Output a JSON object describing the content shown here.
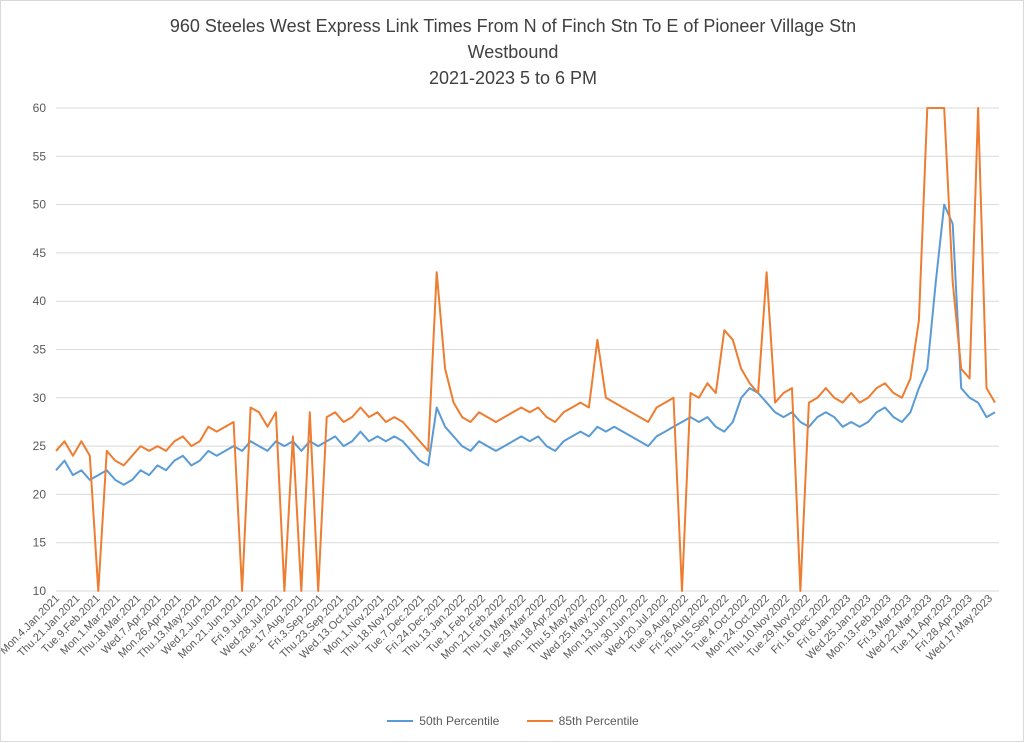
{
  "chart_data": {
    "type": "line",
    "title": "960 Steeles West Express Link Times From N of Finch Stn To E of Pioneer Village Stn",
    "subtitle": "Westbound",
    "subtitle2": "2021-2023 5 to 6 PM",
    "xlabel": "",
    "ylabel": "",
    "ylim": [
      10,
      60
    ],
    "yticks": [
      10,
      15,
      20,
      25,
      30,
      35,
      40,
      45,
      50,
      55,
      60
    ],
    "grid": true,
    "legend_position": "bottom",
    "x_tick_labels": [
      "Mon.4.Jan.2021",
      "Thu.21.Jan.2021",
      "Tue.9.Feb.2021",
      "Mon.1.Mar.2021",
      "Thu.18.Mar.2021",
      "Wed.7.Apr.2021",
      "Mon.26.Apr.2021",
      "Thu.13.May.2021",
      "Wed.2.Jun.2021",
      "Mon.21.Jun.2021",
      "Fri.9.Jul.2021",
      "Wed.28.Jul.2021",
      "Tue.17.Aug.2021",
      "Fri.3.Sep.2021",
      "Thu.23.Sep.2021",
      "Wed.13.Oct.2021",
      "Mon.1.Nov.2021",
      "Thu.18.Nov.2021",
      "Tue.7.Dec.2021",
      "Fri.24.Dec.2021",
      "Thu.13.Jan.2022",
      "Tue.1.Feb.2022",
      "Mon.21.Feb.2022",
      "Thu.10.Mar.2022",
      "Tue.29.Mar.2022",
      "Mon.18.Apr.2022",
      "Thu.5.May.2022",
      "Wed.25.May.2022",
      "Mon.13.Jun.2022",
      "Thu.30.Jun.2022",
      "Wed.20.Jul.2022",
      "Tue.9.Aug.2022",
      "Fri.26.Aug.2022",
      "Thu.15.Sep.2022",
      "Tue.4.Oct.2022",
      "Mon.24.Oct.2022",
      "Thu.10.Nov.2022",
      "Tue.29.Nov.2022",
      "Fri.16.Dec.2022",
      "Fri.6.Jan.2023",
      "Wed.25.Jan.2023",
      "Mon.13.Feb.2023",
      "Fri.3.Mar.2023",
      "Wed.22.Mar.2023",
      "Tue.11.Apr.2023",
      "Fri.28.Apr.2023",
      "Wed.17.May.2023"
    ],
    "series": [
      {
        "name": "50th Percentile",
        "color": "#5b9bd5",
        "values": [
          22.5,
          23.5,
          22.0,
          22.5,
          21.5,
          22.0,
          22.5,
          21.5,
          21.0,
          21.5,
          22.5,
          22.0,
          23.0,
          22.5,
          23.5,
          24.0,
          23.0,
          23.5,
          24.5,
          24.0,
          24.5,
          25.0,
          24.5,
          25.5,
          25.0,
          24.5,
          25.5,
          25.0,
          25.5,
          24.5,
          25.5,
          25.0,
          25.5,
          26.0,
          25.0,
          25.5,
          26.5,
          25.5,
          26.0,
          25.5,
          26.0,
          25.5,
          24.5,
          23.5,
          23.0,
          29.0,
          27.0,
          26.0,
          25.0,
          24.5,
          25.5,
          25.0,
          24.5,
          25.0,
          25.5,
          26.0,
          25.5,
          26.0,
          25.0,
          24.5,
          25.5,
          26.0,
          26.5,
          26.0,
          27.0,
          26.5,
          27.0,
          26.5,
          26.0,
          25.5,
          25.0,
          26.0,
          26.5,
          27.0,
          27.5,
          28.0,
          27.5,
          28.0,
          27.0,
          26.5,
          27.5,
          30.0,
          31.0,
          30.5,
          29.5,
          28.5,
          28.0,
          28.5,
          27.5,
          27.0,
          28.0,
          28.5,
          28.0,
          27.0,
          27.5,
          27.0,
          27.5,
          28.5,
          29.0,
          28.0,
          27.5,
          28.5,
          31.0,
          33.0,
          42.0,
          50.0,
          48.0,
          31.0,
          30.0,
          29.5,
          28.0,
          28.5
        ],
        "gaps": []
      },
      {
        "name": "85th Percentile",
        "color": "#ed7d31",
        "values": [
          24.5,
          25.5,
          24.0,
          25.5,
          24.0,
          10.0,
          24.5,
          23.5,
          23.0,
          24.0,
          25.0,
          24.5,
          25.0,
          24.5,
          25.5,
          26.0,
          25.0,
          25.5,
          27.0,
          26.5,
          27.0,
          27.5,
          10.0,
          29.0,
          28.5,
          27.0,
          28.5,
          10.0,
          26.0,
          10.0,
          28.5,
          10.0,
          28.0,
          28.5,
          27.5,
          28.0,
          29.0,
          28.0,
          28.5,
          27.5,
          28.0,
          27.5,
          26.5,
          25.5,
          24.5,
          43.0,
          33.0,
          29.5,
          28.0,
          27.5,
          28.5,
          28.0,
          27.5,
          28.0,
          28.5,
          29.0,
          28.5,
          29.0,
          28.0,
          27.5,
          28.5,
          29.0,
          29.5,
          29.0,
          36.0,
          30.0,
          29.5,
          29.0,
          28.5,
          28.0,
          27.5,
          29.0,
          29.5,
          30.0,
          10.0,
          30.5,
          30.0,
          31.5,
          30.5,
          37.0,
          36.0,
          33.0,
          31.5,
          30.5,
          43.0,
          29.5,
          30.5,
          31.0,
          10.0,
          29.5,
          30.0,
          31.0,
          30.0,
          29.5,
          30.5,
          29.5,
          30.0,
          31.0,
          31.5,
          30.5,
          30.0,
          32.0,
          38.0,
          60.0,
          60.0,
          60.0,
          42.0,
          33.0,
          32.0,
          60.0,
          31.0,
          29.5
        ]
      }
    ]
  }
}
